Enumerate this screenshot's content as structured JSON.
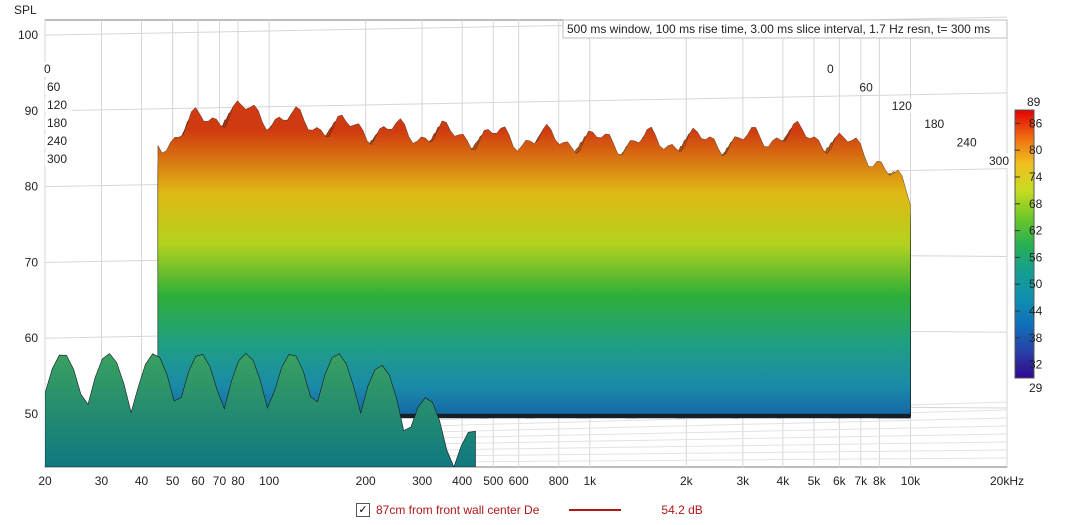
{
  "chart_data": {
    "type": "waterfall",
    "ylabel": "SPL",
    "xunit": "Hz",
    "info_text": "500 ms window, 100 ms rise time, 3.00 ms slice interval, 1.7 Hz resn, t= 300 ms",
    "x_range": [
      20,
      20000
    ],
    "x_scale": "log",
    "y_range": [
      43,
      102
    ],
    "x_ticks": [
      {
        "v": 20,
        "label": "20"
      },
      {
        "v": 30,
        "label": "30"
      },
      {
        "v": 40,
        "label": "40"
      },
      {
        "v": 50,
        "label": "50"
      },
      {
        "v": 60,
        "label": "60"
      },
      {
        "v": 70,
        "label": "70"
      },
      {
        "v": 80,
        "label": "80"
      },
      {
        "v": 100,
        "label": "100"
      },
      {
        "v": 200,
        "label": "200"
      },
      {
        "v": 300,
        "label": "300"
      },
      {
        "v": 400,
        "label": "400"
      },
      {
        "v": 500,
        "label": "500"
      },
      {
        "v": 600,
        "label": "600"
      },
      {
        "v": 800,
        "label": "800"
      },
      {
        "v": 1000,
        "label": "1k"
      },
      {
        "v": 2000,
        "label": "2k"
      },
      {
        "v": 3000,
        "label": "3k"
      },
      {
        "v": 4000,
        "label": "4k"
      },
      {
        "v": 5000,
        "label": "5k"
      },
      {
        "v": 6000,
        "label": "6k"
      },
      {
        "v": 7000,
        "label": "7k"
      },
      {
        "v": 8000,
        "label": "8k"
      },
      {
        "v": 10000,
        "label": "10k"
      },
      {
        "v": 20000,
        "label": "20kHz"
      }
    ],
    "y_ticks": [
      50,
      60,
      70,
      80,
      90,
      100
    ],
    "time_ticks_ms": [
      0,
      60,
      120,
      180,
      240,
      300
    ],
    "time_labels": [
      "0",
      "60",
      "120",
      "180",
      "240",
      "300"
    ],
    "colorbar": {
      "min": 29,
      "max": 89,
      "ticks": [
        86,
        80,
        74,
        68,
        62,
        56,
        50,
        44,
        38,
        32
      ],
      "min_label": "29",
      "max_label": "89"
    },
    "front_slice_peaks": [
      {
        "x": 50,
        "spl": 88
      },
      {
        "x": 80,
        "spl": 90
      },
      {
        "x": 110,
        "spl": 89
      },
      {
        "x": 150,
        "spl": 88
      },
      {
        "x": 300,
        "spl": 87
      },
      {
        "x": 1000,
        "spl": 86
      },
      {
        "x": 3000,
        "spl": 86
      },
      {
        "x": 4000,
        "spl": 87
      },
      {
        "x": 6000,
        "spl": 86
      },
      {
        "x": 10000,
        "spl": 82
      }
    ],
    "series": [
      {
        "name": "87cm from front wall center De",
        "value_label": "54.2 dB"
      }
    ],
    "legend_checked": true
  }
}
